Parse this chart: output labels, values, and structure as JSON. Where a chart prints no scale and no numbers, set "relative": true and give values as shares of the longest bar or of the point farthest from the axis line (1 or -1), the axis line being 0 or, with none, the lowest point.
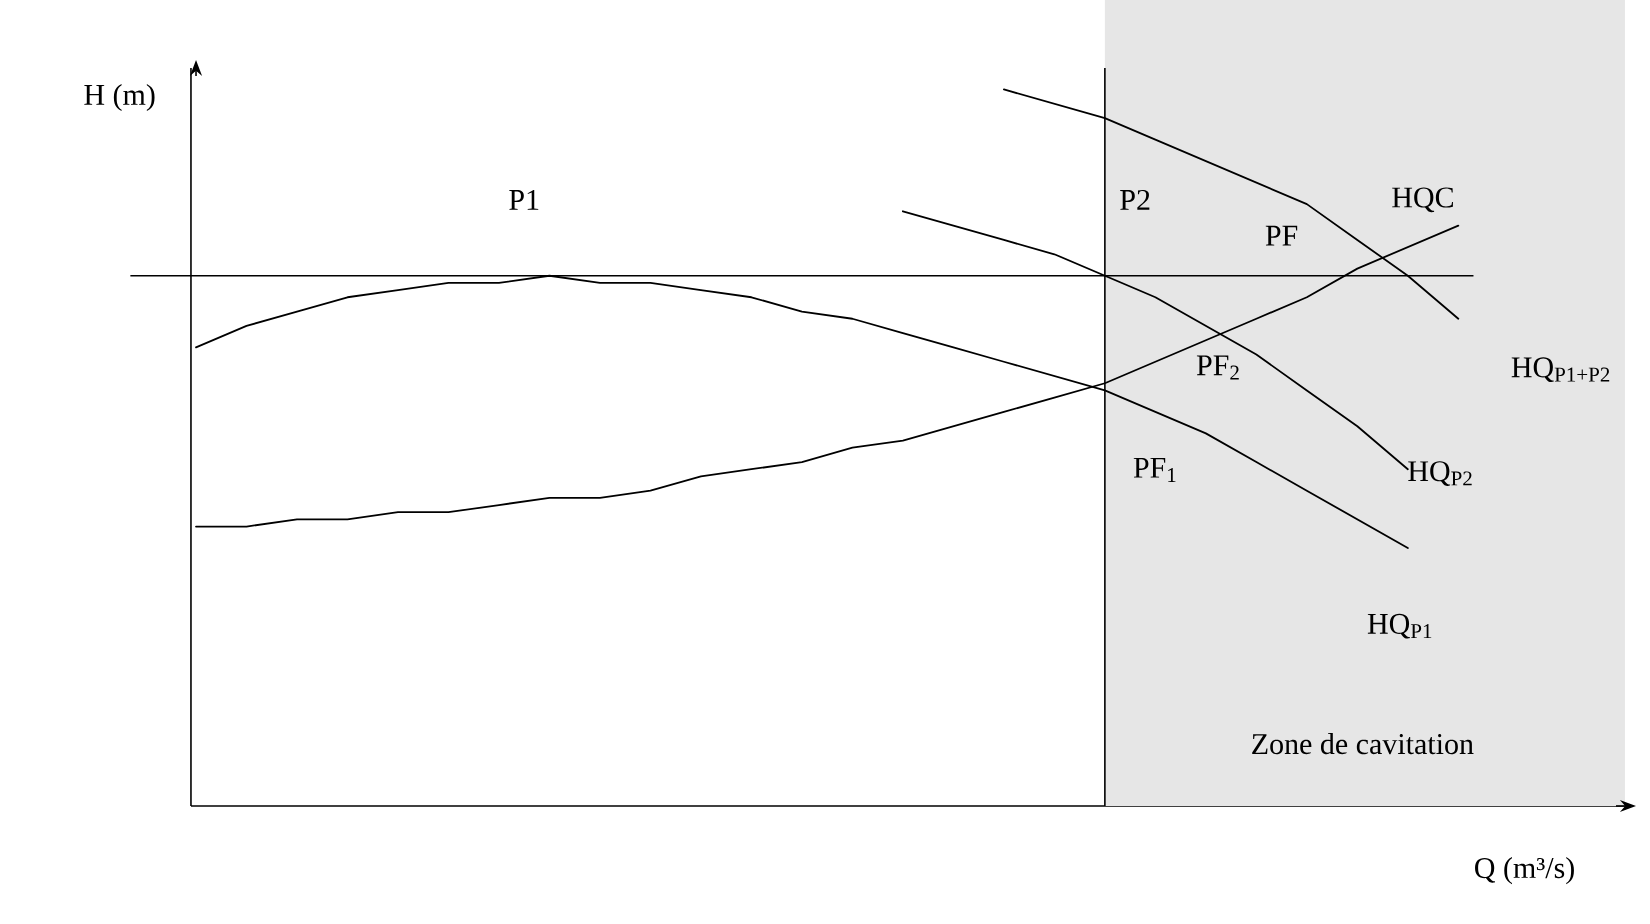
{
  "chart_data": {
    "type": "line",
    "relative": true,
    "xlabel": "Q (m³/s)",
    "ylabel": "H (m)",
    "categories": [
      null,
      null,
      null,
      null,
      null,
      null,
      null,
      null,
      null,
      null,
      null,
      null,
      null,
      null,
      null,
      null,
      null,
      null,
      null,
      null,
      null,
      null,
      null,
      null,
      null,
      null,
      null
    ],
    "series": [
      {
        "name": "HQ$_{P1}$",
        "color": "#000000",
        "values": [
          0.64,
          0.67,
          0.69,
          0.71,
          0.72,
          0.73,
          0.73,
          0.74,
          0.73,
          0.73,
          0.72,
          0.71,
          0.69,
          0.68,
          0.66,
          0.64,
          0.62,
          0.6,
          0.58,
          0.55,
          0.52,
          0.48,
          0.44,
          0.4,
          0.36,
          null,
          null
        ]
      },
      {
        "name": "HQ$_{P2}$",
        "color": "#000000",
        "values": [
          null,
          null,
          null,
          null,
          null,
          null,
          null,
          null,
          null,
          null,
          null,
          null,
          null,
          null,
          0.83,
          0.81,
          0.79,
          0.77,
          0.74,
          0.71,
          0.67,
          0.63,
          0.58,
          0.53,
          0.47,
          null,
          null
        ]
      },
      {
        "name": "HQ$_{P1+P2}$",
        "color": "#000000",
        "values": [
          null,
          null,
          null,
          null,
          null,
          null,
          null,
          null,
          null,
          null,
          null,
          null,
          null,
          null,
          null,
          null,
          1.0,
          0.98,
          0.96,
          0.93,
          0.9,
          0.87,
          0.84,
          0.79,
          0.74,
          0.68,
          null
        ]
      },
      {
        "name": "HQC",
        "color": "#000000",
        "values": [
          0.39,
          0.39,
          0.4,
          0.4,
          0.41,
          0.41,
          0.42,
          0.43,
          0.43,
          0.44,
          0.46,
          0.47,
          0.48,
          0.5,
          0.51,
          0.53,
          0.55,
          0.57,
          0.59,
          0.62,
          0.65,
          0.68,
          0.71,
          0.75,
          0.78,
          0.81,
          null
        ]
      }
    ],
    "ref_lines": [
      {
        "axis": "y",
        "value": 0.74
      }
    ],
    "annotations": [
      "P1",
      "P2",
      "PF",
      "PF$_{2}$",
      "PF$_{1}$",
      "Zone de cavitation"
    ],
    "line_style": "solid",
    "legend": false
  }
}
